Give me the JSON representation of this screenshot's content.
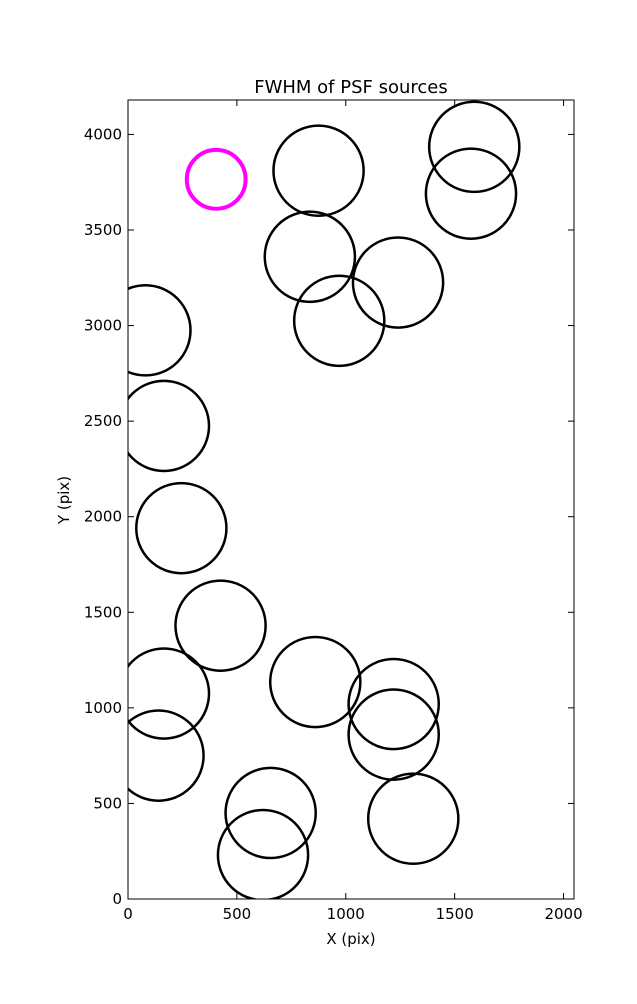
{
  "chart_data": {
    "type": "scatter",
    "title": "FWHM of PSF sources",
    "xlabel": "X (pix)",
    "ylabel": "Y (pix)",
    "xlim": [
      0,
      2048
    ],
    "ylim": [
      0,
      4180
    ],
    "xticks": [
      0,
      500,
      1000,
      1500,
      2000
    ],
    "yticks": [
      0,
      500,
      1000,
      1500,
      2000,
      2500,
      3000,
      3500,
      4000
    ],
    "grid": false,
    "marker": "open-circle",
    "series": [
      {
        "color": "#000000",
        "points": [
          {
            "x": 875,
            "y": 3810,
            "r": 207
          },
          {
            "x": 1590,
            "y": 3935,
            "r": 207
          },
          {
            "x": 1575,
            "y": 3690,
            "r": 207
          },
          {
            "x": 835,
            "y": 3360,
            "r": 207
          },
          {
            "x": 1240,
            "y": 3225,
            "r": 207
          },
          {
            "x": 970,
            "y": 3025,
            "r": 207
          },
          {
            "x": 80,
            "y": 2975,
            "r": 207
          },
          {
            "x": 165,
            "y": 2475,
            "r": 207
          },
          {
            "x": 245,
            "y": 1940,
            "r": 207
          },
          {
            "x": 425,
            "y": 1430,
            "r": 207
          },
          {
            "x": 165,
            "y": 1075,
            "r": 207
          },
          {
            "x": 860,
            "y": 1135,
            "r": 207
          },
          {
            "x": 1220,
            "y": 1020,
            "r": 207
          },
          {
            "x": 1220,
            "y": 860,
            "r": 207
          },
          {
            "x": 140,
            "y": 750,
            "r": 207
          },
          {
            "x": 655,
            "y": 450,
            "r": 207
          },
          {
            "x": 1310,
            "y": 420,
            "r": 207
          },
          {
            "x": 620,
            "y": 230,
            "r": 207
          }
        ]
      },
      {
        "color": "#ff00ff",
        "points": [
          {
            "x": 405,
            "y": 3765,
            "r": 135
          }
        ]
      }
    ]
  }
}
